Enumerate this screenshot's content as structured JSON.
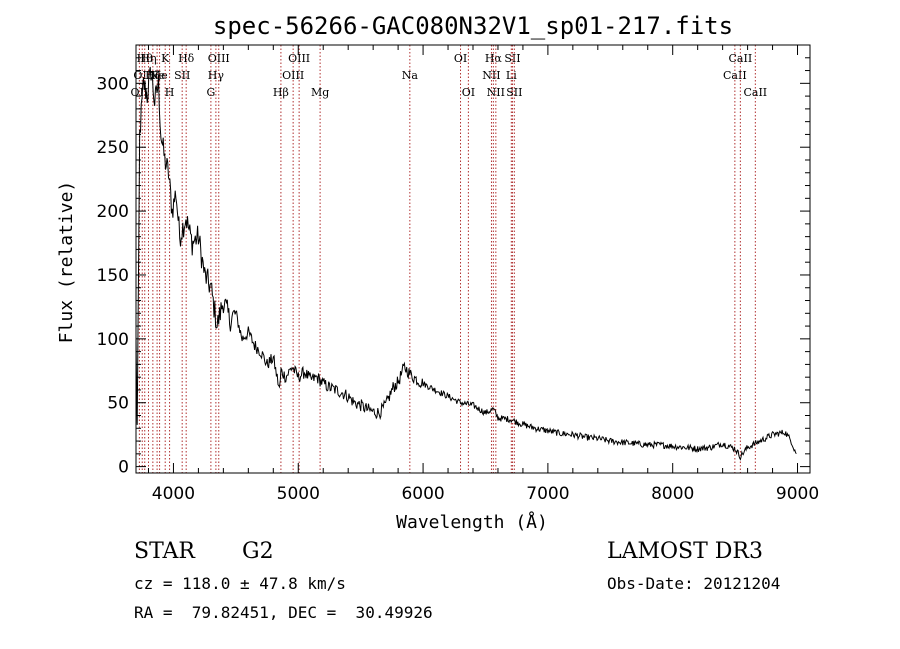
{
  "chart_data": {
    "type": "line",
    "title": "spec-56266-GAC080N32V1_sp01-217.fits",
    "xlabel": "Wavelength (Å)",
    "ylabel": "Flux (relative)",
    "xlim": [
      3700,
      9100
    ],
    "ylim": [
      -5,
      330
    ],
    "xticks": [
      4000,
      5000,
      6000,
      7000,
      8000,
      9000
    ],
    "yticks": [
      0,
      50,
      100,
      150,
      200,
      250,
      300
    ],
    "grid": false,
    "series": [
      {
        "name": "spectrum",
        "x": [
          3700,
          3710,
          3730,
          3760,
          3790,
          3820,
          3850,
          3880,
          3900,
          3930,
          3960,
          3990,
          4020,
          4050,
          4100,
          4150,
          4200,
          4250,
          4300,
          4350,
          4400,
          4450,
          4500,
          4550,
          4600,
          4650,
          4700,
          4750,
          4800,
          4850,
          4862,
          4900,
          4950,
          5000,
          5050,
          5100,
          5150,
          5200,
          5250,
          5300,
          5350,
          5400,
          5450,
          5500,
          5550,
          5600,
          5650,
          5700,
          5730,
          5760,
          5800,
          5850,
          5900,
          5950,
          6000,
          6100,
          6200,
          6300,
          6400,
          6500,
          6563,
          6600,
          6700,
          6800,
          6900,
          7000,
          7100,
          7200,
          7300,
          7400,
          7500,
          7600,
          7700,
          7800,
          7900,
          8000,
          8100,
          8200,
          8300,
          8400,
          8500,
          8542,
          8600,
          8700,
          8800,
          8900,
          8950,
          8990
        ],
        "y": [
          100,
          30,
          260,
          300,
          290,
          310,
          285,
          300,
          260,
          240,
          230,
          200,
          215,
          180,
          195,
          175,
          180,
          150,
          140,
          110,
          130,
          115,
          120,
          100,
          105,
          95,
          90,
          80,
          85,
          60,
          75,
          70,
          78,
          70,
          74,
          68,
          70,
          65,
          62,
          60,
          58,
          55,
          50,
          48,
          45,
          43,
          42,
          48,
          55,
          62,
          66,
          78,
          72,
          68,
          65,
          60,
          55,
          50,
          48,
          42,
          45,
          38,
          37,
          33,
          30,
          28,
          26,
          25,
          23,
          22,
          20,
          19,
          18,
          17,
          17,
          16,
          15,
          14,
          15,
          18,
          14,
          8,
          15,
          20,
          25,
          27,
          20,
          10
        ]
      }
    ],
    "lines": [
      {
        "wl": 3727,
        "label": "OII",
        "row": 3
      },
      {
        "wl": 3750,
        "label": "OII",
        "row": 2
      },
      {
        "wl": 3770,
        "label": "Hθ",
        "row": 1
      },
      {
        "wl": 3800,
        "label": "Hη",
        "row": 1
      },
      {
        "wl": 3835,
        "label": "Hζ",
        "row": 2
      },
      {
        "wl": 3869,
        "label": "Ne",
        "row": 2
      },
      {
        "wl": 3889,
        "label": "He",
        "row": 2
      },
      {
        "wl": 3934,
        "label": "K",
        "row": 1
      },
      {
        "wl": 3969,
        "label": "H",
        "row": 3
      },
      {
        "wl": 4070,
        "label": "SII",
        "row": 2
      },
      {
        "wl": 4102,
        "label": "Hδ",
        "row": 1
      },
      {
        "wl": 4300,
        "label": "G",
        "row": 3
      },
      {
        "wl": 4340,
        "label": "Hγ",
        "row": 2
      },
      {
        "wl": 4363,
        "label": "OIII",
        "row": 1
      },
      {
        "wl": 4861,
        "label": "Hβ",
        "row": 3
      },
      {
        "wl": 4959,
        "label": "OIII",
        "row": 2
      },
      {
        "wl": 5007,
        "label": "OIII",
        "row": 1
      },
      {
        "wl": 5175,
        "label": "Mg",
        "row": 3
      },
      {
        "wl": 5894,
        "label": "Na",
        "row": 2
      },
      {
        "wl": 6300,
        "label": "OI",
        "row": 1
      },
      {
        "wl": 6363,
        "label": "OI",
        "row": 3
      },
      {
        "wl": 6548,
        "label": "NII",
        "row": 2
      },
      {
        "wl": 6563,
        "label": "Hα",
        "row": 1
      },
      {
        "wl": 6583,
        "label": "NII",
        "row": 3
      },
      {
        "wl": 6707,
        "label": "Li",
        "row": 2
      },
      {
        "wl": 6716,
        "label": "SII",
        "row": 1
      },
      {
        "wl": 6731,
        "label": "SII",
        "row": 3
      },
      {
        "wl": 8498,
        "label": "CaII",
        "row": 2
      },
      {
        "wl": 8542,
        "label": "CaII",
        "row": 1
      },
      {
        "wl": 8662,
        "label": "CaII",
        "row": 3
      }
    ]
  },
  "info": {
    "object_class": "STAR",
    "subclass": "G2",
    "survey": "LAMOST DR3",
    "redshift": "cz = 118.0 ± 47.8 km/s",
    "obs_date": "Obs-Date: 20121204",
    "coords": "RA =  79.82451, DEC =  30.49926"
  }
}
